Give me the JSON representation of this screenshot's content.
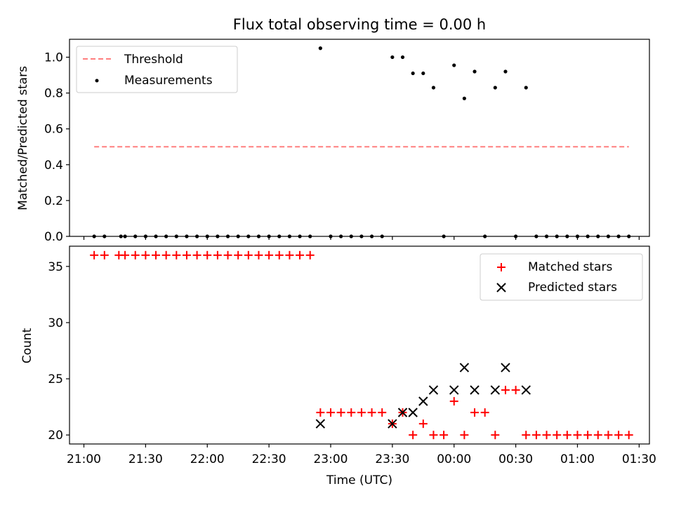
{
  "title": "Flux total observing time = 0.00 h",
  "chart_data": [
    {
      "type": "scatter",
      "panel": "top",
      "ylabel": "Matched/Predicted stars",
      "ylim": [
        0,
        1.1
      ],
      "yticks": [
        0.0,
        0.2,
        0.4,
        0.6,
        0.8,
        1.0
      ],
      "ytick_labels": [
        "0.0",
        "0.2",
        "0.4",
        "0.6",
        "0.8",
        "1.0"
      ],
      "legend": {
        "position": "top-left",
        "entries": [
          "Threshold",
          "Measurements"
        ]
      },
      "threshold": {
        "name": "Threshold",
        "value": 0.5,
        "x_start": "21:05",
        "x_end": "01:25",
        "color": "#ff7f7f",
        "style": "dashed"
      },
      "series": [
        {
          "name": "Measurements",
          "color": "#000000",
          "points": [
            [
              "21:05",
              0
            ],
            [
              "21:10",
              0
            ],
            [
              "21:18",
              0
            ],
            [
              "21:20",
              0
            ],
            [
              "21:25",
              0
            ],
            [
              "21:30",
              0
            ],
            [
              "21:35",
              0
            ],
            [
              "21:40",
              0
            ],
            [
              "21:45",
              0
            ],
            [
              "21:50",
              0
            ],
            [
              "21:55",
              0
            ],
            [
              "22:00",
              0
            ],
            [
              "22:05",
              0
            ],
            [
              "22:10",
              0
            ],
            [
              "22:15",
              0
            ],
            [
              "22:20",
              0
            ],
            [
              "22:25",
              0
            ],
            [
              "22:30",
              0
            ],
            [
              "22:35",
              0
            ],
            [
              "22:40",
              0
            ],
            [
              "22:45",
              0
            ],
            [
              "22:50",
              0
            ],
            [
              "22:55",
              1.05
            ],
            [
              "23:00",
              0
            ],
            [
              "23:05",
              0
            ],
            [
              "23:10",
              0
            ],
            [
              "23:15",
              0
            ],
            [
              "23:20",
              0
            ],
            [
              "23:25",
              0
            ],
            [
              "23:30",
              1.0
            ],
            [
              "23:35",
              1.0
            ],
            [
              "23:40",
              0.91
            ],
            [
              "23:45",
              0.91
            ],
            [
              "23:50",
              0.83
            ],
            [
              "23:55",
              0
            ],
            [
              "00:00",
              0.955
            ],
            [
              "00:05",
              0.77
            ],
            [
              "00:10",
              0.92
            ],
            [
              "00:15",
              0
            ],
            [
              "00:20",
              0.83
            ],
            [
              "00:25",
              0.92
            ],
            [
              "00:30",
              0
            ],
            [
              "00:35",
              0.83
            ],
            [
              "00:40",
              0
            ],
            [
              "00:45",
              0
            ],
            [
              "00:50",
              0
            ],
            [
              "00:55",
              0
            ],
            [
              "01:00",
              0
            ],
            [
              "01:05",
              0
            ],
            [
              "01:10",
              0
            ],
            [
              "01:15",
              0
            ],
            [
              "01:20",
              0
            ],
            [
              "01:25",
              0
            ]
          ]
        }
      ]
    },
    {
      "type": "scatter",
      "panel": "bottom",
      "xlabel": "Time (UTC)",
      "ylabel": "Count",
      "ylim": [
        19.2,
        36.8
      ],
      "yticks": [
        20,
        25,
        30,
        35
      ],
      "ytick_labels": [
        "20",
        "25",
        "30",
        "35"
      ],
      "xlim": [
        "20:53",
        "01:35"
      ],
      "xticks": [
        "21:00",
        "21:30",
        "22:00",
        "22:30",
        "23:00",
        "23:30",
        "00:00",
        "00:30",
        "01:00",
        "01:30"
      ],
      "legend": {
        "position": "top-right",
        "entries": [
          "Matched stars",
          "Predicted stars"
        ]
      },
      "series": [
        {
          "name": "Matched stars",
          "marker": "plus",
          "color": "#ff0000",
          "points": [
            [
              "21:05",
              36
            ],
            [
              "21:10",
              36
            ],
            [
              "21:17",
              36
            ],
            [
              "21:20",
              36
            ],
            [
              "21:25",
              36
            ],
            [
              "21:30",
              36
            ],
            [
              "21:35",
              36
            ],
            [
              "21:40",
              36
            ],
            [
              "21:45",
              36
            ],
            [
              "21:50",
              36
            ],
            [
              "21:55",
              36
            ],
            [
              "22:00",
              36
            ],
            [
              "22:05",
              36
            ],
            [
              "22:10",
              36
            ],
            [
              "22:15",
              36
            ],
            [
              "22:20",
              36
            ],
            [
              "22:25",
              36
            ],
            [
              "22:30",
              36
            ],
            [
              "22:35",
              36
            ],
            [
              "22:40",
              36
            ],
            [
              "22:45",
              36
            ],
            [
              "22:50",
              36
            ],
            [
              "22:55",
              22
            ],
            [
              "23:00",
              22
            ],
            [
              "23:05",
              22
            ],
            [
              "23:10",
              22
            ],
            [
              "23:15",
              22
            ],
            [
              "23:20",
              22
            ],
            [
              "23:25",
              22
            ],
            [
              "23:30",
              21
            ],
            [
              "23:35",
              22
            ],
            [
              "23:40",
              20
            ],
            [
              "23:45",
              21
            ],
            [
              "23:50",
              20
            ],
            [
              "23:55",
              20
            ],
            [
              "00:00",
              23
            ],
            [
              "00:05",
              20
            ],
            [
              "00:10",
              22
            ],
            [
              "00:15",
              22
            ],
            [
              "00:20",
              20
            ],
            [
              "00:25",
              24
            ],
            [
              "00:30",
              24
            ],
            [
              "00:35",
              20
            ],
            [
              "00:40",
              20
            ],
            [
              "00:45",
              20
            ],
            [
              "00:50",
              20
            ],
            [
              "00:55",
              20
            ],
            [
              "01:00",
              20
            ],
            [
              "01:05",
              20
            ],
            [
              "01:10",
              20
            ],
            [
              "01:15",
              20
            ],
            [
              "01:20",
              20
            ],
            [
              "01:25",
              20
            ]
          ]
        },
        {
          "name": "Predicted stars",
          "marker": "x",
          "color": "#000000",
          "points": [
            [
              "22:55",
              21
            ],
            [
              "23:30",
              21
            ],
            [
              "23:35",
              22
            ],
            [
              "23:40",
              22
            ],
            [
              "23:45",
              23
            ],
            [
              "23:50",
              24
            ],
            [
              "00:00",
              24
            ],
            [
              "00:05",
              26
            ],
            [
              "00:10",
              24
            ],
            [
              "00:20",
              24
            ],
            [
              "00:25",
              26
            ],
            [
              "00:35",
              24
            ]
          ]
        }
      ]
    }
  ]
}
